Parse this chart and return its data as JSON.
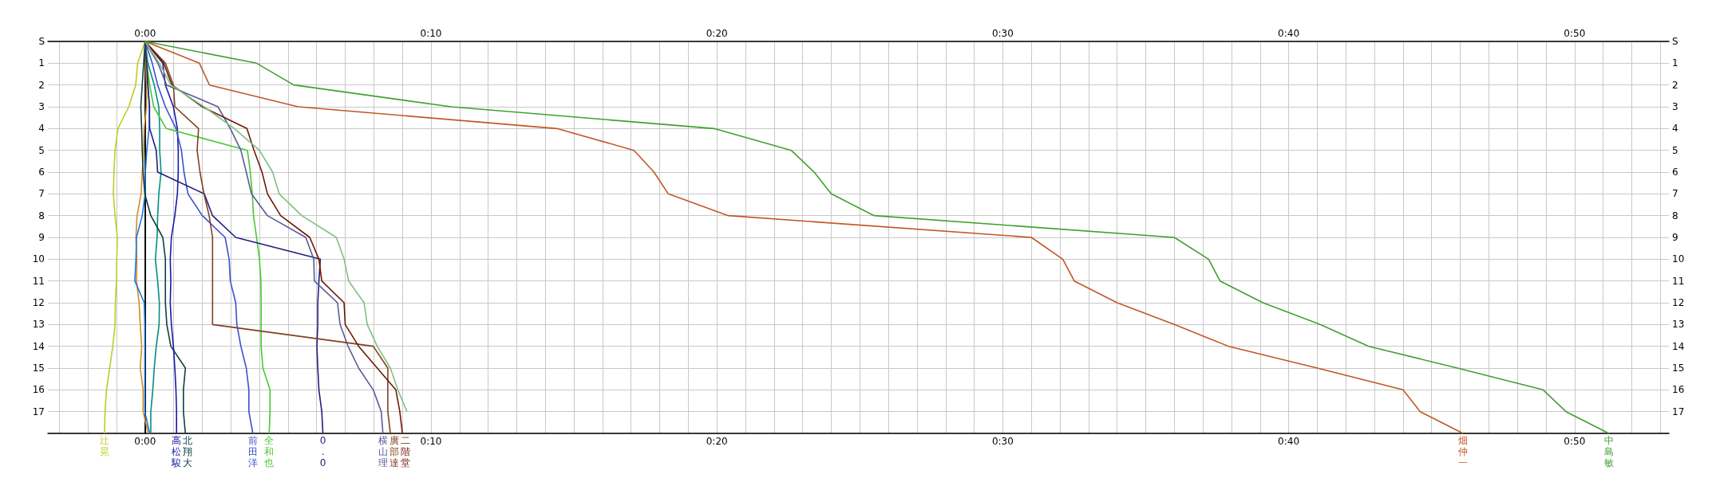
{
  "chart_data": {
    "type": "line",
    "orientation": "horizontal",
    "grid": true,
    "categories": [
      "S",
      "1",
      "2",
      "3",
      "4",
      "5",
      "6",
      "7",
      "8",
      "9",
      "10",
      "11",
      "12",
      "13",
      "14",
      "15",
      "16",
      "17",
      null
    ],
    "xlim": [
      -3.4,
      53.3
    ],
    "xticks": [
      {
        "value": -3,
        "label": null
      },
      {
        "value": -2,
        "label": null
      },
      {
        "value": -1,
        "label": null
      },
      {
        "value": 0,
        "label": "0:00"
      },
      {
        "value": 1,
        "label": null
      },
      {
        "value": 2,
        "label": null
      },
      {
        "value": 3,
        "label": null
      },
      {
        "value": 4,
        "label": null
      },
      {
        "value": 5,
        "label": null
      },
      {
        "value": 6,
        "label": null
      },
      {
        "value": 7,
        "label": null
      },
      {
        "value": 8,
        "label": null
      },
      {
        "value": 9,
        "label": null
      },
      {
        "value": 10,
        "label": "0:10"
      },
      {
        "value": 11,
        "label": null
      },
      {
        "value": 12,
        "label": null
      },
      {
        "value": 13,
        "label": null
      },
      {
        "value": 14,
        "label": null
      },
      {
        "value": 15,
        "label": null
      },
      {
        "value": 16,
        "label": null
      },
      {
        "value": 17,
        "label": null
      },
      {
        "value": 18,
        "label": null
      },
      {
        "value": 19,
        "label": null
      },
      {
        "value": 20,
        "label": "0:20"
      },
      {
        "value": 21,
        "label": null
      },
      {
        "value": 22,
        "label": null
      },
      {
        "value": 23,
        "label": null
      },
      {
        "value": 24,
        "label": null
      },
      {
        "value": 25,
        "label": null
      },
      {
        "value": 26,
        "label": null
      },
      {
        "value": 27,
        "label": null
      },
      {
        "value": 28,
        "label": null
      },
      {
        "value": 29,
        "label": null
      },
      {
        "value": 30,
        "label": "0:30"
      },
      {
        "value": 31,
        "label": null
      },
      {
        "value": 32,
        "label": null
      },
      {
        "value": 33,
        "label": null
      },
      {
        "value": 34,
        "label": null
      },
      {
        "value": 35,
        "label": null
      },
      {
        "value": 36,
        "label": null
      },
      {
        "value": 37,
        "label": null
      },
      {
        "value": 38,
        "label": null
      },
      {
        "value": 39,
        "label": null
      },
      {
        "value": 40,
        "label": "0:40"
      },
      {
        "value": 41,
        "label": null
      },
      {
        "value": 42,
        "label": null
      },
      {
        "value": 43,
        "label": null
      },
      {
        "value": 44,
        "label": null
      },
      {
        "value": 45,
        "label": null
      },
      {
        "value": 46,
        "label": null
      },
      {
        "value": 47,
        "label": null
      },
      {
        "value": 48,
        "label": null
      },
      {
        "value": 49,
        "label": null
      },
      {
        "value": 50,
        "label": "0:50"
      },
      {
        "value": 51,
        "label": null
      },
      {
        "value": 52,
        "label": null
      },
      {
        "value": 53,
        "label": null
      }
    ],
    "x2lim": [
      -3.4,
      53.3
    ],
    "x2ticks": [
      {
        "value": 0,
        "label": "0:00"
      },
      {
        "value": 10,
        "label": "0:10"
      },
      {
        "value": 20,
        "label": "0:20"
      },
      {
        "value": 30,
        "label": "0:30"
      },
      {
        "value": 40,
        "label": "0:40"
      },
      {
        "value": 50,
        "label": "0:50"
      }
    ],
    "series": [
      {
        "name": "辻晃",
        "color": "#c0cc20",
        "values": [
          0,
          -0.26,
          -0.33,
          -0.57,
          -0.95,
          -1.05,
          -1.09,
          -1.11,
          -1.05,
          -0.97,
          -0.99,
          -1.0,
          -1.04,
          -1.05,
          -1.13,
          -1.24,
          -1.35,
          -1.4,
          -1.42
        ]
      },
      {
        "color": "#d08c28",
        "values": [
          0,
          0.02,
          0.05,
          0.05,
          -0.03,
          -0.05,
          -0.1,
          -0.14,
          -0.28,
          -0.32,
          -0.29,
          -0.3,
          -0.21,
          -0.17,
          -0.12,
          -0.17,
          -0.07,
          -0.07,
          0.11
        ]
      },
      {
        "color": "#1e78d8",
        "values": [
          0,
          0.08,
          0.09,
          0.16,
          0.14,
          0.06,
          0.01,
          0,
          -0.1,
          -0.3,
          -0.32,
          -0.36,
          -0.03,
          -0.01,
          -0.01,
          -0.01,
          -0.01,
          -0.01,
          0.16
        ]
      },
      {
        "color": "#009080",
        "values": [
          0,
          0.1,
          0.32,
          0.48,
          0.51,
          0.51,
          0.56,
          0.48,
          0.44,
          0.42,
          0.36,
          0.44,
          0.5,
          0.49,
          0.39,
          0.32,
          0.27,
          0.2,
          0.2
        ]
      },
      {
        "name": "北翔大",
        "color": "#0c4040",
        "values": [
          0,
          -0.05,
          -0.1,
          -0.15,
          -0.12,
          -0.1,
          -0.07,
          -0.01,
          0.2,
          0.62,
          0.71,
          0.71,
          0.71,
          0.76,
          0.9,
          1.41,
          1.34,
          1.34,
          1.41
        ]
      },
      {
        "name": "高松駿",
        "color": "#1a1aa8",
        "values": [
          0,
          0.62,
          0.71,
          0.99,
          1.13,
          1.16,
          1.16,
          1.13,
          1.04,
          0.92,
          0.88,
          0.9,
          0.88,
          0.92,
          0.99,
          1.04,
          1.08,
          1.1,
          1.1
        ]
      },
      {
        "name": "前田洋",
        "color": "#3a50d0",
        "values": [
          0,
          0.25,
          0.44,
          0.71,
          1.08,
          1.27,
          1.36,
          1.5,
          2.0,
          2.8,
          2.94,
          2.98,
          3.17,
          3.21,
          3.35,
          3.54,
          3.63,
          3.63,
          3.77
        ]
      },
      {
        "name": "全和也",
        "color": "#48c830",
        "values": [
          0,
          0.06,
          0.16,
          0.3,
          0.74,
          3.58,
          3.68,
          3.75,
          3.79,
          3.9,
          4.0,
          4.05,
          4.06,
          4.06,
          4.06,
          4.12,
          4.37,
          4.37,
          4.34
        ]
      },
      {
        "name": "0.0",
        "color": "#202080",
        "values": [
          0,
          0.05,
          0.1,
          0.15,
          0.16,
          0.39,
          0.44,
          2.07,
          2.36,
          3.17,
          6.13,
          6.08,
          6.04,
          6.04,
          6.01,
          6.04,
          6.08,
          6.18,
          6.22
        ]
      },
      {
        "name": "横山理",
        "color": "#5a5a98",
        "values": [
          0,
          0.45,
          0.75,
          2.55,
          2.98,
          3.35,
          3.54,
          3.72,
          4.28,
          5.62,
          5.9,
          5.92,
          6.73,
          6.82,
          7.1,
          7.47,
          7.98,
          8.26,
          8.32
        ]
      },
      {
        "name": "廣部達",
        "color": "#804020",
        "values": [
          0,
          0.71,
          0.99,
          1.04,
          1.87,
          1.82,
          1.92,
          2.06,
          2.24,
          2.36,
          2.36,
          2.36,
          2.36,
          2.36,
          7.98,
          8.49,
          8.49,
          8.49,
          8.58
        ]
      },
      {
        "name": "二階堂",
        "color": "#701808",
        "values": [
          0,
          0.65,
          0.94,
          2.0,
          3.56,
          3.81,
          4.09,
          4.28,
          4.74,
          5.76,
          6.08,
          6.18,
          6.96,
          7.0,
          7.47,
          8.12,
          8.77,
          8.91,
          9.0
        ]
      },
      {
        "color": "#80c080",
        "values": [
          0,
          0.5,
          0.9,
          2.06,
          3.12,
          4.0,
          4.46,
          4.69,
          5.48,
          6.69,
          6.96,
          7.12,
          7.66,
          7.77,
          8.12,
          8.58,
          8.84,
          9.16,
          null
        ]
      },
      {
        "name": "畑仲一",
        "color": "#c05828",
        "values": [
          0,
          1.9,
          2.25,
          5.35,
          14.4,
          17.1,
          17.8,
          18.3,
          20.4,
          31.0,
          32.1,
          32.5,
          34.0,
          36.0,
          37.9,
          41.0,
          44.0,
          44.6,
          46.1
        ]
      },
      {
        "name": "中島敏",
        "color": "#40a030",
        "values": [
          0,
          3.9,
          5.2,
          10.7,
          19.9,
          22.6,
          23.4,
          24.0,
          25.5,
          36.0,
          37.2,
          37.6,
          39.1,
          41.1,
          42.8,
          45.9,
          48.9,
          49.7,
          51.2
        ]
      }
    ]
  }
}
